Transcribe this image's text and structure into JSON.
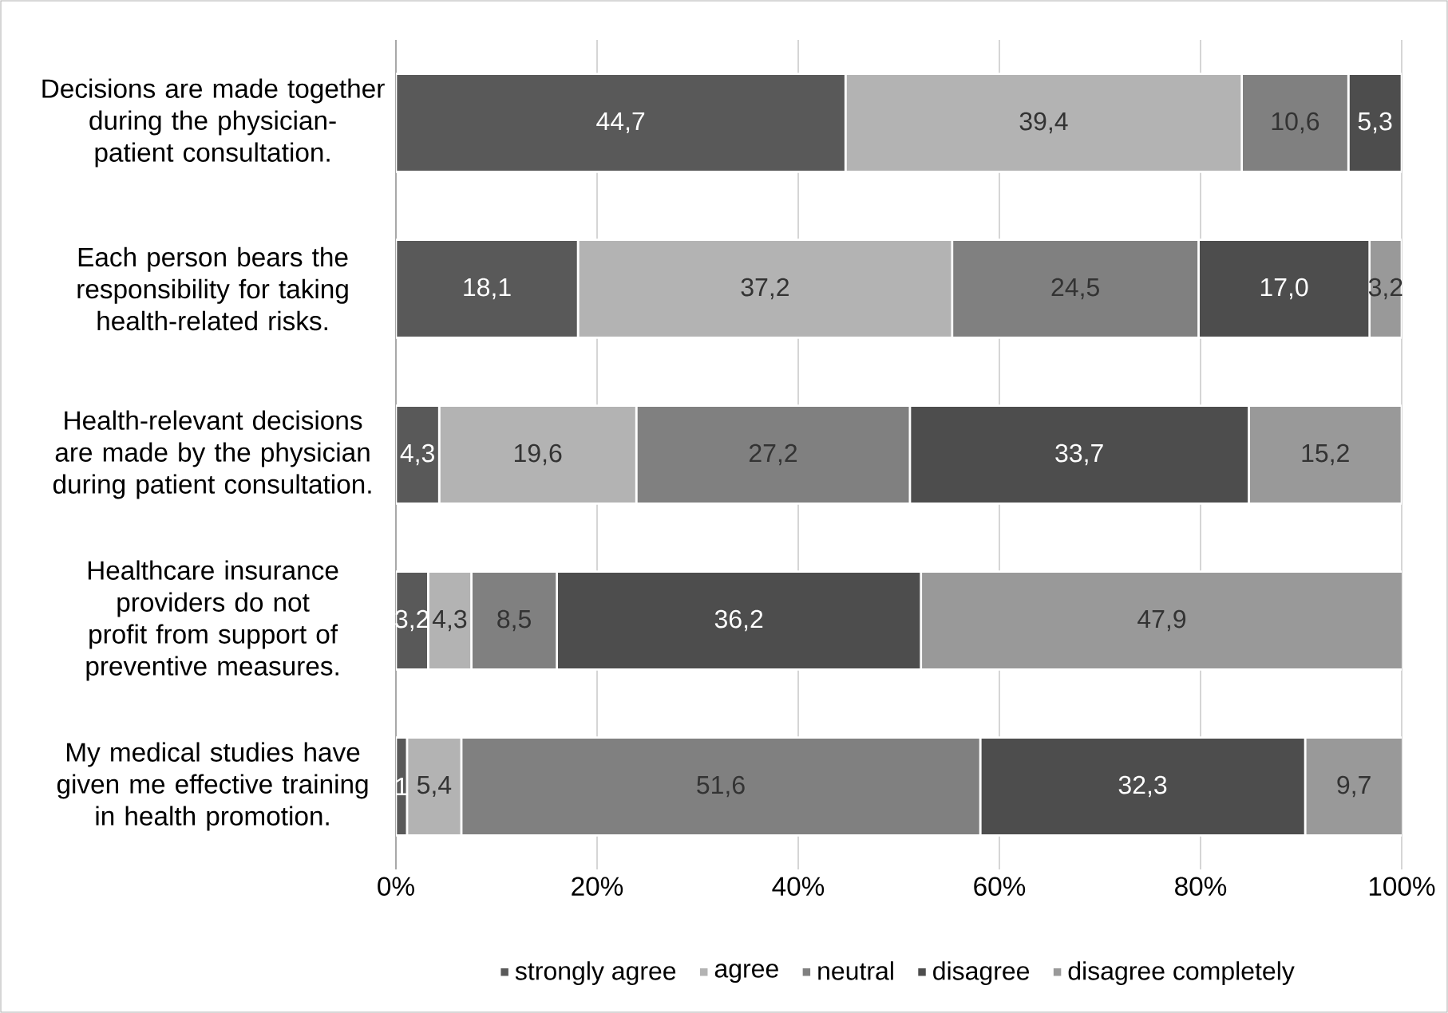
{
  "chart_data": {
    "type": "bar",
    "orientation": "horizontal",
    "stacked": true,
    "categories": [
      "Decisions are made together during the physician-patient consultation.",
      "Each person bears the responsibility for taking health-related risks.",
      "Health-relevant decisions are made by the physician during patient consultation.",
      "Healthcare insurance providers do not profit from support of preventive measures.",
      "My medical studies have given me effective training in health promotion."
    ],
    "series": [
      {
        "name": "strongly agree",
        "color": "#595959",
        "values": [
          44.7,
          18.1,
          4.3,
          3.2,
          1.1
        ],
        "value_labels": [
          "44,7",
          "18,1",
          "4,3",
          "3,2",
          "1"
        ]
      },
      {
        "name": "agree",
        "color": "#b3b3b3",
        "values": [
          39.4,
          37.2,
          19.6,
          4.3,
          5.4
        ],
        "value_labels": [
          "39,4",
          "37,2",
          "19,6",
          "4,3",
          "5,4"
        ]
      },
      {
        "name": "neutral",
        "color": "#808080",
        "values": [
          10.6,
          24.5,
          27.2,
          8.5,
          51.6
        ],
        "value_labels": [
          "10,6",
          "24,5",
          "27,2",
          "8,5",
          "51,6"
        ]
      },
      {
        "name": "disagree",
        "color": "#4d4d4d",
        "values": [
          5.3,
          17.0,
          33.7,
          36.2,
          32.3
        ],
        "value_labels": [
          "5,3",
          "17,0",
          "33,7",
          "36,2",
          "32,3"
        ]
      },
      {
        "name": "disagree completely",
        "color": "#999999",
        "values": [
          null,
          3.2,
          15.2,
          47.9,
          9.7
        ],
        "value_labels": [
          null,
          "3,2",
          "15,2",
          "47,9",
          "9,7"
        ]
      }
    ],
    "xlim": [
      0,
      100
    ],
    "xticks": [
      {
        "value": 0,
        "label": "0%"
      },
      {
        "value": 20,
        "label": "20%"
      },
      {
        "value": 40,
        "label": "40%"
      },
      {
        "value": 60,
        "label": "60%"
      },
      {
        "value": 80,
        "label": "80%"
      },
      {
        "value": 100,
        "label": "100%"
      }
    ],
    "grid": "x",
    "legend": "bottom"
  }
}
